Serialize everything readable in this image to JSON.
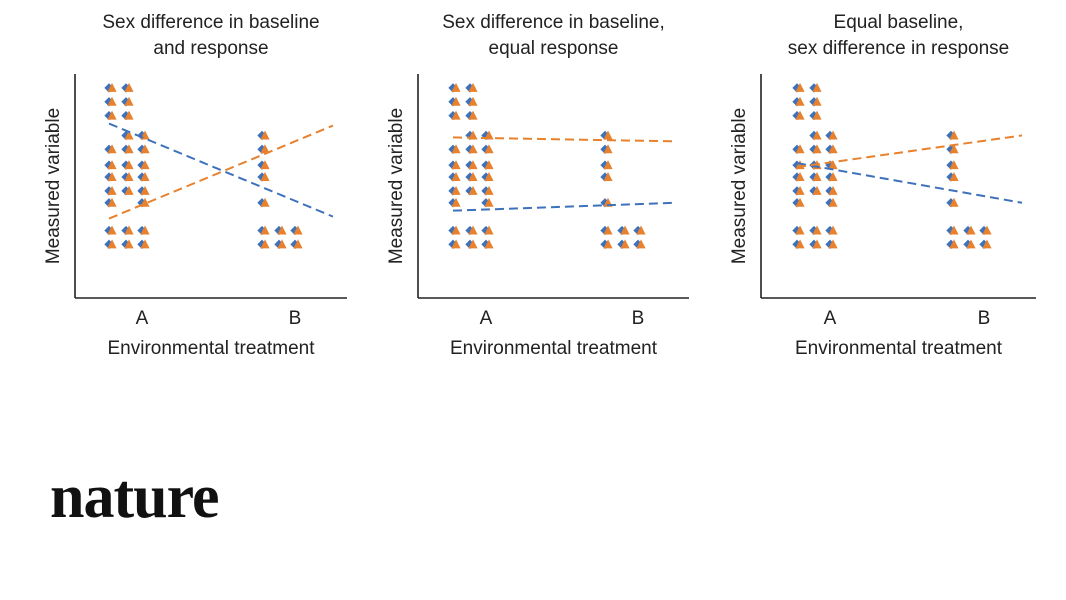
{
  "brand": {
    "logo_text": "nature"
  },
  "colors": {
    "female": "#e8812d",
    "male": "#3d72bb",
    "axis": "#222222"
  },
  "chart_data": [
    {
      "type": "scatter",
      "title": [
        "Sex difference in baseline",
        "and response"
      ],
      "xlabel": "Environmental treatment",
      "ylabel": "Measured variable",
      "categories": [
        "A",
        "B"
      ],
      "ylim": [
        0,
        100
      ],
      "series": [
        {
          "marker": "diamond",
          "color": "#3d72bb",
          "trend": [
            78,
            31
          ],
          "points": [
            [
              0,
              96
            ],
            [
              0,
              89
            ],
            [
              0,
              82
            ],
            [
              1,
              96
            ],
            [
              1,
              89
            ],
            [
              1,
              82
            ],
            [
              0,
              65
            ],
            [
              0,
              57
            ],
            [
              0,
              51
            ],
            [
              0,
              44
            ],
            [
              0,
              38
            ],
            [
              1,
              72
            ],
            [
              1,
              65
            ],
            [
              1,
              57
            ],
            [
              1,
              51
            ],
            [
              1,
              44
            ],
            [
              2,
              72
            ],
            [
              2,
              65
            ],
            [
              2,
              57
            ],
            [
              2,
              51
            ],
            [
              2,
              44
            ],
            [
              2,
              38
            ],
            [
              3,
              72
            ],
            [
              3,
              65
            ],
            [
              3,
              57
            ],
            [
              3,
              51
            ],
            [
              3,
              38
            ],
            [
              0,
              24
            ],
            [
              0,
              17
            ],
            [
              1,
              24
            ],
            [
              1,
              17
            ],
            [
              2,
              24
            ],
            [
              2,
              17
            ],
            [
              3,
              24
            ],
            [
              3,
              17
            ],
            [
              4,
              24
            ],
            [
              4,
              17
            ],
            [
              5,
              24
            ],
            [
              5,
              17
            ]
          ]
        },
        {
          "marker": "triangle",
          "color": "#e8812d",
          "trend": [
            30,
            77
          ],
          "points": [
            [
              0,
              96
            ],
            [
              0,
              89
            ],
            [
              0,
              82
            ],
            [
              1,
              96
            ],
            [
              1,
              89
            ],
            [
              1,
              82
            ],
            [
              0,
              65
            ],
            [
              0,
              57
            ],
            [
              0,
              51
            ],
            [
              0,
              44
            ],
            [
              0,
              38
            ],
            [
              1,
              72
            ],
            [
              1,
              65
            ],
            [
              1,
              57
            ],
            [
              1,
              51
            ],
            [
              1,
              44
            ],
            [
              2,
              72
            ],
            [
              2,
              65
            ],
            [
              2,
              57
            ],
            [
              2,
              51
            ],
            [
              2,
              44
            ],
            [
              2,
              38
            ],
            [
              3,
              72
            ],
            [
              3,
              65
            ],
            [
              3,
              57
            ],
            [
              3,
              51
            ],
            [
              3,
              38
            ],
            [
              0,
              24
            ],
            [
              0,
              17
            ],
            [
              1,
              24
            ],
            [
              1,
              17
            ],
            [
              2,
              24
            ],
            [
              2,
              17
            ],
            [
              3,
              24
            ],
            [
              3,
              17
            ],
            [
              4,
              24
            ],
            [
              4,
              17
            ],
            [
              5,
              24
            ],
            [
              5,
              17
            ]
          ]
        }
      ]
    },
    {
      "type": "scatter",
      "title": [
        "Sex difference in baseline,",
        "equal response"
      ],
      "xlabel": "Environmental treatment",
      "ylabel": "Measured variable",
      "categories": [
        "A",
        "B"
      ],
      "ylim": [
        0,
        100
      ],
      "series": [
        {
          "marker": "diamond",
          "color": "#3d72bb",
          "trend": [
            34,
            38
          ],
          "points": [
            [
              0,
              96
            ],
            [
              0,
              89
            ],
            [
              0,
              82
            ],
            [
              1,
              96
            ],
            [
              1,
              89
            ],
            [
              1,
              82
            ],
            [
              0,
              65
            ],
            [
              0,
              57
            ],
            [
              0,
              51
            ],
            [
              0,
              44
            ],
            [
              0,
              38
            ],
            [
              1,
              72
            ],
            [
              1,
              65
            ],
            [
              1,
              57
            ],
            [
              1,
              51
            ],
            [
              1,
              44
            ],
            [
              2,
              72
            ],
            [
              2,
              65
            ],
            [
              2,
              57
            ],
            [
              2,
              51
            ],
            [
              2,
              44
            ],
            [
              2,
              38
            ],
            [
              3,
              72
            ],
            [
              3,
              65
            ],
            [
              3,
              57
            ],
            [
              3,
              51
            ],
            [
              3,
              38
            ],
            [
              0,
              24
            ],
            [
              0,
              17
            ],
            [
              1,
              24
            ],
            [
              1,
              17
            ],
            [
              2,
              24
            ],
            [
              2,
              17
            ],
            [
              3,
              24
            ],
            [
              3,
              17
            ],
            [
              4,
              24
            ],
            [
              4,
              17
            ],
            [
              5,
              24
            ],
            [
              5,
              17
            ]
          ]
        },
        {
          "marker": "triangle",
          "color": "#e8812d",
          "trend": [
            71,
            69
          ],
          "points": [
            [
              0,
              96
            ],
            [
              0,
              89
            ],
            [
              0,
              82
            ],
            [
              1,
              96
            ],
            [
              1,
              89
            ],
            [
              1,
              82
            ],
            [
              0,
              65
            ],
            [
              0,
              57
            ],
            [
              0,
              51
            ],
            [
              0,
              44
            ],
            [
              0,
              38
            ],
            [
              1,
              72
            ],
            [
              1,
              65
            ],
            [
              1,
              57
            ],
            [
              1,
              51
            ],
            [
              1,
              44
            ],
            [
              2,
              72
            ],
            [
              2,
              65
            ],
            [
              2,
              57
            ],
            [
              2,
              51
            ],
            [
              2,
              44
            ],
            [
              2,
              38
            ],
            [
              3,
              72
            ],
            [
              3,
              65
            ],
            [
              3,
              57
            ],
            [
              3,
              51
            ],
            [
              3,
              38
            ],
            [
              0,
              24
            ],
            [
              0,
              17
            ],
            [
              1,
              24
            ],
            [
              1,
              17
            ],
            [
              2,
              24
            ],
            [
              2,
              17
            ],
            [
              3,
              24
            ],
            [
              3,
              17
            ],
            [
              4,
              24
            ],
            [
              4,
              17
            ],
            [
              5,
              24
            ],
            [
              5,
              17
            ]
          ]
        }
      ]
    },
    {
      "type": "scatter",
      "title": [
        "Equal baseline,",
        "sex difference in response"
      ],
      "xlabel": "Environmental treatment",
      "ylabel": "Measured variable",
      "categories": [
        "A",
        "B"
      ],
      "ylim": [
        0,
        100
      ],
      "series": [
        {
          "marker": "diamond",
          "color": "#3d72bb",
          "trend": [
            58,
            38
          ],
          "points": [
            [
              0,
              96
            ],
            [
              0,
              89
            ],
            [
              0,
              82
            ],
            [
              1,
              96
            ],
            [
              1,
              89
            ],
            [
              1,
              82
            ],
            [
              0,
              65
            ],
            [
              0,
              57
            ],
            [
              0,
              51
            ],
            [
              0,
              44
            ],
            [
              0,
              38
            ],
            [
              1,
              72
            ],
            [
              1,
              65
            ],
            [
              1,
              57
            ],
            [
              1,
              51
            ],
            [
              1,
              44
            ],
            [
              2,
              72
            ],
            [
              2,
              65
            ],
            [
              2,
              57
            ],
            [
              2,
              51
            ],
            [
              2,
              44
            ],
            [
              2,
              38
            ],
            [
              3,
              72
            ],
            [
              3,
              65
            ],
            [
              3,
              57
            ],
            [
              3,
              51
            ],
            [
              3,
              38
            ],
            [
              0,
              24
            ],
            [
              0,
              17
            ],
            [
              1,
              24
            ],
            [
              1,
              17
            ],
            [
              2,
              24
            ],
            [
              2,
              17
            ],
            [
              3,
              24
            ],
            [
              3,
              17
            ],
            [
              4,
              24
            ],
            [
              4,
              17
            ],
            [
              5,
              24
            ],
            [
              5,
              17
            ]
          ]
        },
        {
          "marker": "triangle",
          "color": "#e8812d",
          "trend": [
            56,
            72
          ],
          "points": [
            [
              0,
              96
            ],
            [
              0,
              89
            ],
            [
              0,
              82
            ],
            [
              1,
              96
            ],
            [
              1,
              89
            ],
            [
              1,
              82
            ],
            [
              0,
              65
            ],
            [
              0,
              57
            ],
            [
              0,
              51
            ],
            [
              0,
              44
            ],
            [
              0,
              38
            ],
            [
              1,
              72
            ],
            [
              1,
              65
            ],
            [
              1,
              57
            ],
            [
              1,
              51
            ],
            [
              1,
              44
            ],
            [
              2,
              72
            ],
            [
              2,
              65
            ],
            [
              2,
              57
            ],
            [
              2,
              51
            ],
            [
              2,
              44
            ],
            [
              2,
              38
            ],
            [
              3,
              72
            ],
            [
              3,
              65
            ],
            [
              3,
              57
            ],
            [
              3,
              51
            ],
            [
              3,
              38
            ],
            [
              0,
              24
            ],
            [
              0,
              17
            ],
            [
              1,
              24
            ],
            [
              1,
              17
            ],
            [
              2,
              24
            ],
            [
              2,
              17
            ],
            [
              3,
              24
            ],
            [
              3,
              17
            ],
            [
              4,
              24
            ],
            [
              4,
              17
            ],
            [
              5,
              24
            ],
            [
              5,
              17
            ]
          ]
        }
      ]
    }
  ]
}
